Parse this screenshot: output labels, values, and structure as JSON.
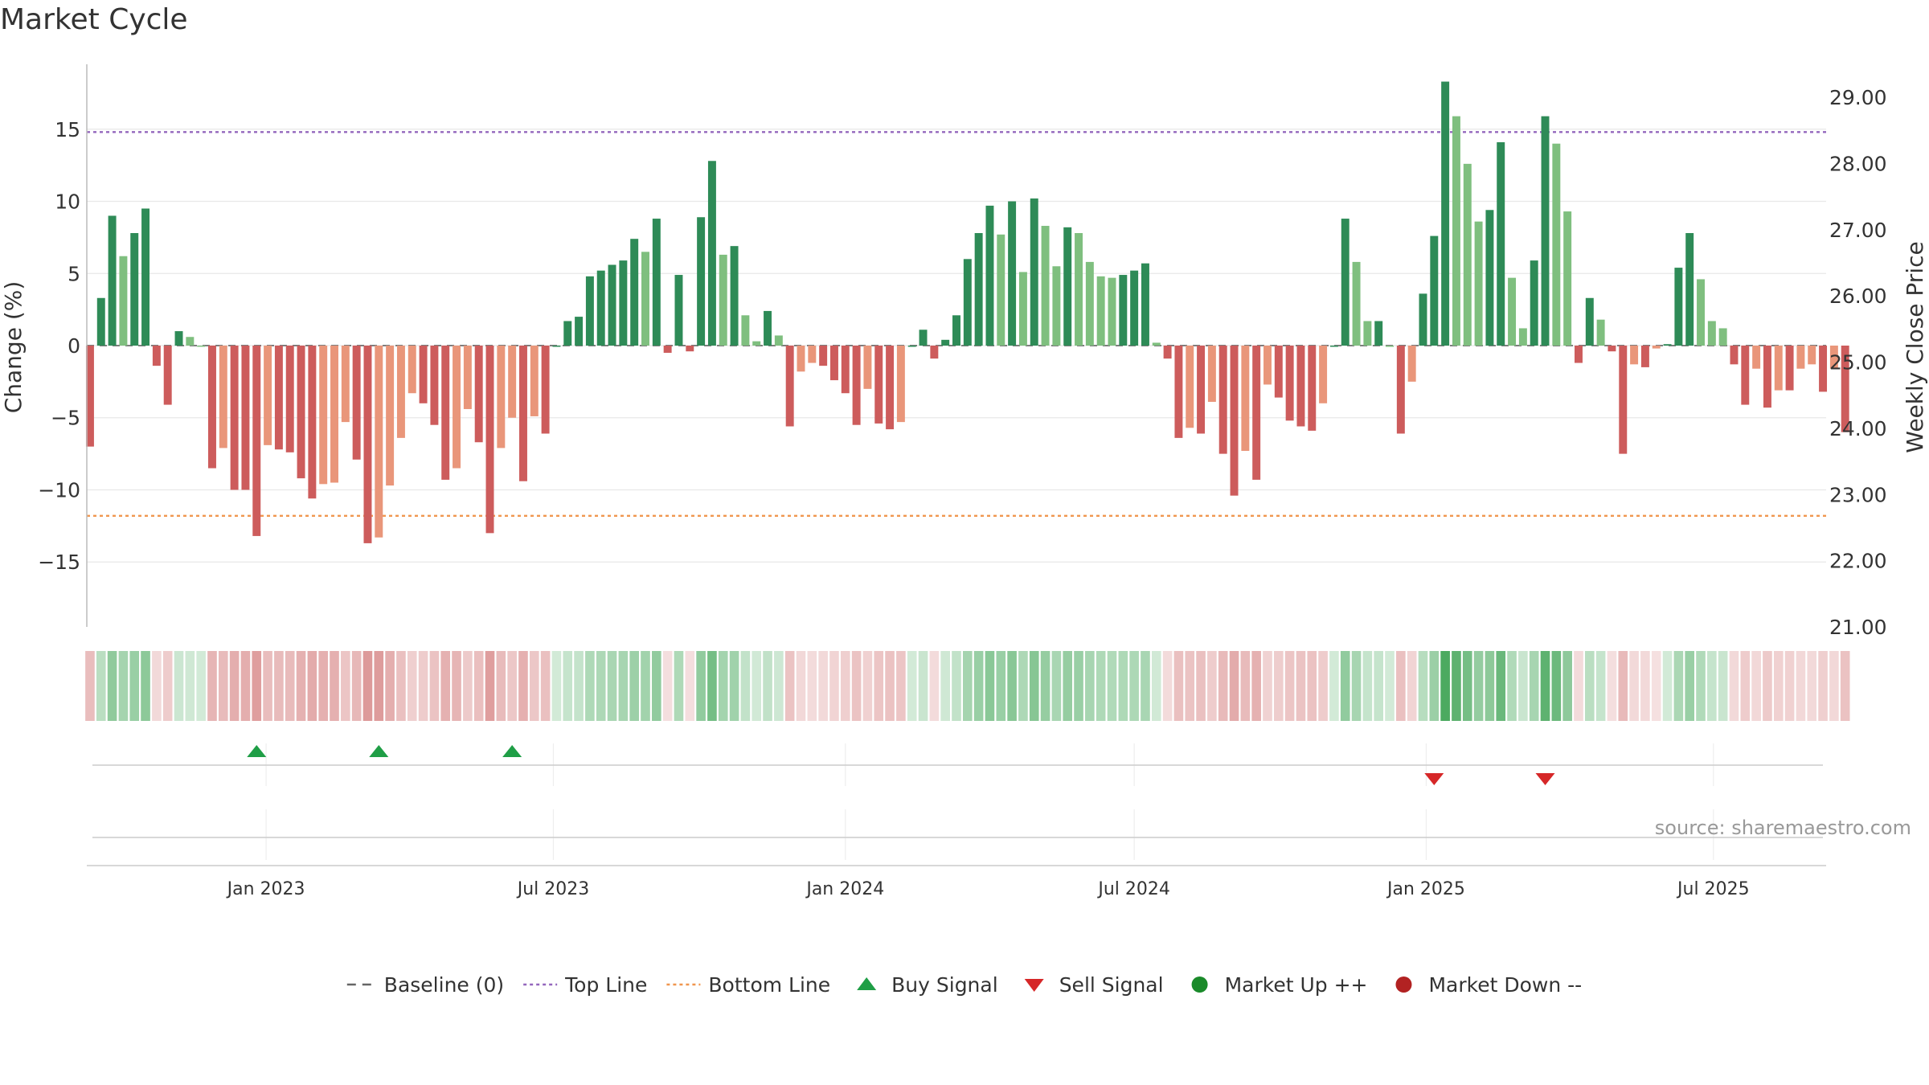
{
  "chart_data": {
    "type": "bar",
    "title": "Market Cycle",
    "ylabel": "Change (%)",
    "y2label": "Weekly Close Price",
    "ylim": [
      -19.5,
      19.5
    ],
    "yticks": [
      -15,
      -10,
      -5,
      0,
      5,
      10,
      15
    ],
    "y2lim": [
      21.0,
      29.5
    ],
    "y2ticks": [
      "21.00",
      "22.00",
      "23.00",
      "24.00",
      "25.00",
      "26.00",
      "27.00",
      "28.00",
      "29.00"
    ],
    "x_start": "2022-09-12",
    "x_interval_days": 7,
    "xlim": [
      "2022-09-10",
      "2025-09-10"
    ],
    "xticks": [
      {
        "date": "2023-01-01",
        "label": "Jan 2023"
      },
      {
        "date": "2023-07-01",
        "label": "Jul 2023"
      },
      {
        "date": "2024-01-01",
        "label": "Jan 2024"
      },
      {
        "date": "2024-07-01",
        "label": "Jul 2024"
      },
      {
        "date": "2025-01-01",
        "label": "Jan 2025"
      },
      {
        "date": "2025-07-01",
        "label": "Jul 2025"
      }
    ],
    "top_line": 14.8,
    "bottom_line": -11.8,
    "values": [
      -7.0,
      3.3,
      9.0,
      6.2,
      7.8,
      9.5,
      -1.4,
      -4.1,
      1.0,
      0.6,
      0,
      -8.5,
      -7.1,
      -10.0,
      -10.0,
      -13.2,
      -6.9,
      -7.2,
      -7.4,
      -9.2,
      -10.6,
      -9.6,
      -9.5,
      -5.3,
      -7.9,
      -13.7,
      -13.3,
      -9.7,
      -6.4,
      -3.3,
      -4.0,
      -5.5,
      -9.3,
      -8.5,
      -4.4,
      -6.7,
      -13.0,
      -7.1,
      -5.0,
      -9.4,
      -4.9,
      -6.1,
      0,
      1.7,
      2.0,
      4.8,
      5.2,
      5.6,
      5.9,
      7.4,
      6.5,
      8.8,
      -0.5,
      4.9,
      -0.4,
      8.9,
      12.8,
      6.3,
      6.9,
      2.1,
      0.3,
      2.4,
      0.7,
      -5.6,
      -1.8,
      -1.2,
      -1.4,
      -2.4,
      -3.3,
      -5.5,
      -3.0,
      -5.4,
      -5.8,
      -5.3,
      0,
      1.1,
      -0.9,
      0.4,
      2.1,
      6.0,
      7.8,
      9.7,
      7.7,
      10.0,
      5.1,
      10.2,
      8.3,
      5.5,
      8.2,
      7.8,
      5.8,
      4.8,
      4.7,
      4.9,
      5.2,
      5.7,
      0.2,
      -0.9,
      -6.4,
      -5.7,
      -6.1,
      -3.9,
      -7.5,
      -10.4,
      -7.3,
      -9.3,
      -2.7,
      -3.6,
      -5.2,
      -5.6,
      -5.9,
      -4.0,
      0,
      8.8,
      5.8,
      1.7,
      1.7,
      0,
      -6.1,
      -2.5,
      3.6,
      7.6,
      18.3,
      15.9,
      12.6,
      8.6,
      9.4,
      14.1,
      4.7,
      1.2,
      5.9,
      15.9,
      14.0,
      9.3,
      -1.2,
      3.3,
      1.8,
      -0.4,
      -7.5,
      -1.3,
      -1.5,
      -0.2,
      0.1,
      5.4,
      7.8,
      4.6,
      1.7,
      1.2,
      -1.3,
      -4.1,
      -1.6,
      -4.3,
      -3.1,
      -3.1,
      -1.6,
      -1.3,
      -3.2,
      -1.6,
      -6.0
    ],
    "buy_signals": [
      "2022-12-26",
      "2023-03-13",
      "2023-06-05"
    ],
    "sell_signals": [
      "2025-01-06",
      "2025-03-17"
    ],
    "source": "source: sharemaestro.com",
    "legend": {
      "placement": "bottom",
      "items": [
        {
          "label": "Baseline (0)",
          "marker": "dashed-line",
          "color": "#666666"
        },
        {
          "label": "Top Line",
          "marker": "dotted-line",
          "color": "#9467bd"
        },
        {
          "label": "Bottom Line",
          "marker": "dotted-line",
          "color": "#f0964f"
        },
        {
          "label": "Buy Signal",
          "marker": "triangle-up",
          "color": "#1f9e46"
        },
        {
          "label": "Sell Signal",
          "marker": "triangle-down",
          "color": "#d62728"
        },
        {
          "label": "Market Up ++",
          "marker": "circle",
          "color": "#1a8a2a"
        },
        {
          "label": "Market Down --",
          "marker": "circle",
          "color": "#b22222"
        }
      ]
    },
    "colors": {
      "up_strong": "#2e8b57",
      "up_weak": "#7fbf7f",
      "down_strong": "#cd5c5c",
      "down_weak": "#e9967a",
      "top_line": "#9467bd",
      "bottom_line": "#f0964f",
      "buy": "#1f9e46",
      "sell": "#d62728"
    }
  }
}
